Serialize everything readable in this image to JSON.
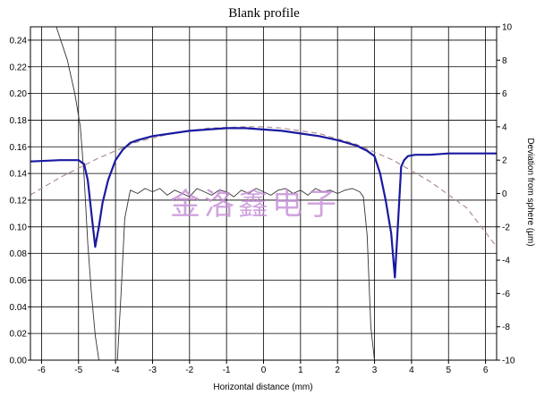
{
  "chart_data": {
    "type": "line",
    "title": "Blank profile",
    "xlabel": "Horizontal distance (mm)",
    "ylabel": "",
    "y2label": "Deviation from sphere (μm)",
    "xlim": [
      -6.3,
      6.3
    ],
    "ylim": [
      0.0,
      0.25
    ],
    "y2lim": [
      -10,
      10
    ],
    "grid": true,
    "x_ticks": [
      "-6",
      "-5",
      "-4",
      "-3",
      "-2",
      "-1",
      "0",
      "1",
      "2",
      "3",
      "4",
      "5",
      "6"
    ],
    "y_ticks": [
      "0.00",
      "0.02",
      "0.04",
      "0.06",
      "0.08",
      "0.10",
      "0.12",
      "0.14",
      "0.16",
      "0.18",
      "0.20",
      "0.22",
      "0.24"
    ],
    "y2_ticks": [
      "-10",
      "-8",
      "-6",
      "-4",
      "-2",
      "0",
      "2",
      "4",
      "6",
      "8",
      "10"
    ],
    "watermark": "金洛鑫电子",
    "series": [
      {
        "name": "",
        "axis": "left",
        "color": "#1a1aa0",
        "x": [
          -6.3,
          -5.5,
          -5.0,
          -4.85,
          -4.75,
          -4.65,
          -4.55,
          -4.45,
          -4.35,
          -4.2,
          -4.0,
          -3.8,
          -3.6,
          -3.4,
          -3.0,
          -2.5,
          -2.0,
          -1.5,
          -1.0,
          -0.5,
          0.0,
          0.5,
          1.0,
          1.5,
          2.0,
          2.5,
          2.8,
          3.0,
          3.15,
          3.3,
          3.45,
          3.55,
          3.65,
          3.72,
          3.8,
          3.9,
          4.1,
          4.5,
          5.0,
          6.0,
          6.3
        ],
        "values": [
          0.149,
          0.15,
          0.15,
          0.147,
          0.135,
          0.11,
          0.085,
          0.1,
          0.118,
          0.135,
          0.15,
          0.158,
          0.163,
          0.165,
          0.168,
          0.17,
          0.172,
          0.173,
          0.174,
          0.174,
          0.173,
          0.172,
          0.17,
          0.168,
          0.165,
          0.161,
          0.157,
          0.153,
          0.14,
          0.12,
          0.095,
          0.062,
          0.11,
          0.145,
          0.15,
          0.153,
          0.154,
          0.154,
          0.155,
          0.155,
          0.155
        ]
      },
      {
        "name": "",
        "axis": "right",
        "color": "#333333",
        "x": [
          -5.6,
          -5.3,
          -5.1,
          -4.95,
          -4.85,
          -4.75,
          -4.65,
          -4.55,
          -4.45,
          -3.95,
          -3.85,
          -3.75,
          -3.6,
          -3.4,
          -3.2,
          -3.0,
          -2.8,
          -2.6,
          -2.4,
          -2.2,
          -2.0,
          -1.8,
          -1.6,
          -1.4,
          -1.2,
          -1.0,
          -0.8,
          -0.6,
          -0.4,
          -0.2,
          0.0,
          0.2,
          0.4,
          0.6,
          0.8,
          1.0,
          1.2,
          1.4,
          1.6,
          1.8,
          2.0,
          2.2,
          2.4,
          2.6,
          2.7,
          2.8,
          2.9,
          3.0
        ],
        "values": [
          10,
          8,
          6,
          4,
          1,
          -3,
          -6,
          -8.5,
          -10,
          -10,
          -6,
          -1.5,
          0.2,
          0.0,
          0.3,
          0.1,
          0.3,
          -0.1,
          0.2,
          0.0,
          -0.2,
          0.3,
          0.1,
          -0.1,
          0.2,
          0.1,
          -0.2,
          0.2,
          0.0,
          0.3,
          0.1,
          -0.1,
          0.2,
          0.3,
          0.0,
          0.2,
          -0.1,
          0.3,
          0.1,
          0.2,
          0.0,
          0.2,
          0.3,
          0.1,
          -0.2,
          -2.5,
          -8,
          -10
        ]
      },
      {
        "name": "",
        "axis": "left",
        "color": "#b09090",
        "style": "dashed",
        "x": [
          -6.3,
          -5.5,
          -4.5,
          -3.5,
          -2.5,
          -1.5,
          -0.5,
          0.0,
          0.5,
          1.5,
          2.5,
          3.5,
          4.5,
          5.5,
          6.3
        ],
        "values": [
          0.124,
          0.137,
          0.151,
          0.163,
          0.17,
          0.174,
          0.175,
          0.175,
          0.174,
          0.17,
          0.162,
          0.15,
          0.134,
          0.114,
          0.085
        ]
      }
    ]
  }
}
